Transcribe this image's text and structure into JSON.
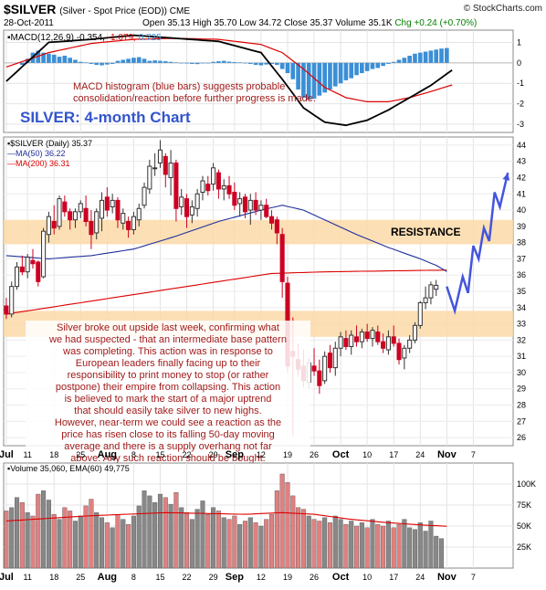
{
  "header": {
    "symbol": "$SILVER",
    "description": "(Silver - Spot Price (EOD))  CME",
    "date": "28-Oct-2011",
    "ohlc_text": "Open 35.13  High 35.70  Low 34.72  Close 35.37  Volume 35.1K",
    "change_text": "Chg +0.24 (+0.70%)",
    "brand": "© StockCharts.com"
  },
  "colors": {
    "up": "#333333",
    "down": "#cc0022",
    "macd_line": "#000000",
    "signal_line": "#dd0000",
    "histogram": "#3b8fd6",
    "ma50": "#1f2f9c",
    "ma200": "#dd0000",
    "band": "#fbd9a8",
    "annotation": "#a11a1a",
    "title": "#3355cc",
    "projection": "#4455dd",
    "vol_up": "#888888",
    "vol_down": "#e08080"
  },
  "chart_data": [
    {
      "type": "line",
      "panel": "macd",
      "legend": {
        "label": "MACD(12,26,9)",
        "macd_value": "-0.354",
        "signal_value": "-1.079",
        "hist_value": "0.725"
      },
      "y_ticks": [
        "1",
        "0",
        "-1",
        "-2",
        "-3"
      ],
      "ylim": [
        -3.4,
        1.6
      ],
      "x_index": [
        0,
        8,
        16,
        24,
        32,
        40,
        48,
        52,
        56,
        60,
        64,
        68,
        72,
        76,
        80,
        84
      ],
      "macd": [
        -0.9,
        1.0,
        1.15,
        1.35,
        1.2,
        1.05,
        0.5,
        -0.8,
        -2.2,
        -2.9,
        -3.05,
        -2.8,
        -2.3,
        -1.7,
        -1.1,
        -0.354
      ],
      "signal": [
        -0.2,
        0.5,
        0.95,
        1.15,
        1.2,
        1.15,
        0.9,
        0.5,
        -0.3,
        -1.2,
        -1.7,
        -1.9,
        -1.9,
        -1.7,
        -1.4,
        -1.079
      ],
      "histogram": [
        -0.1,
        0.2,
        0.5,
        0.6,
        0.5,
        0.45,
        0.4,
        0.3,
        0.35,
        0.25,
        0.15,
        0.05,
        0.02,
        -0.05,
        -0.1,
        -0.12,
        -0.08,
        -0.05,
        0.1,
        0.15,
        0.2,
        0.25,
        0.28,
        0.2,
        0.1,
        0.12,
        0.1,
        0.08,
        0.05,
        0.02,
        0.0,
        -0.03,
        -0.05,
        -0.06,
        -0.02,
        0.0,
        0.05,
        0.08,
        0.1,
        0.06,
        0.04,
        0.02,
        0.0,
        -0.05,
        -0.1,
        -0.12,
        -0.08,
        -0.05,
        -0.1,
        -0.3,
        -0.5,
        -0.8,
        -1.3,
        -1.7,
        -1.8,
        -1.75,
        -1.6,
        -1.45,
        -1.3,
        -1.15,
        -1.0,
        -0.85,
        -0.75,
        -0.6,
        -0.5,
        -0.4,
        -0.3,
        -0.25,
        -0.15,
        -0.05,
        0.05,
        0.15,
        0.25,
        0.35,
        0.45,
        0.5,
        0.55,
        0.6,
        0.65,
        0.7,
        0.725
      ],
      "annotation": "MACD histogram (blue bars) suggests probable consolidation/reaction before further progress is made.",
      "chart_title": "SILVER: 4-month Chart"
    },
    {
      "type": "candlestick",
      "panel": "price",
      "legend": {
        "symbol_label": "$SILVER (Daily) 35.37",
        "ma50_label": "MA(50) 36.22",
        "ma200_label": "MA(200) 36.31"
      },
      "ylim": [
        25.5,
        44.5
      ],
      "y_ticks": [
        "44",
        "43",
        "42",
        "41",
        "40",
        "39",
        "38",
        "37",
        "36",
        "35",
        "34",
        "33",
        "32",
        "31",
        "30",
        "29",
        "28",
        "27",
        "26"
      ],
      "x_ticks": [
        "Jul",
        "11",
        "18",
        "25",
        "Aug",
        "8",
        "15",
        "22",
        "29",
        "Sep",
        "12",
        "19",
        "26",
        "Oct",
        "10",
        "17",
        "24",
        "Nov",
        "7"
      ],
      "x_tick_index": [
        0,
        4,
        9,
        14,
        19,
        24,
        29,
        34,
        39,
        43,
        48,
        53,
        58,
        63,
        68,
        73,
        78,
        83,
        88
      ],
      "candles": [
        [
          34.1,
          34.6,
          33.3,
          33.6
        ],
        [
          33.6,
          35.6,
          33.4,
          35.3
        ],
        [
          35.3,
          36.8,
          35.1,
          36.5
        ],
        [
          36.5,
          37.2,
          36.0,
          36.2
        ],
        [
          36.2,
          37.3,
          35.8,
          37.1
        ],
        [
          36.9,
          37.6,
          36.4,
          36.7
        ],
        [
          36.8,
          36.9,
          35.3,
          35.6
        ],
        [
          35.9,
          38.9,
          35.8,
          38.7
        ],
        [
          38.5,
          39.9,
          38.0,
          39.6
        ],
        [
          39.3,
          40.3,
          38.5,
          38.9
        ],
        [
          39.0,
          40.9,
          38.8,
          40.7
        ],
        [
          40.5,
          40.9,
          39.6,
          39.9
        ],
        [
          39.9,
          40.1,
          38.8,
          39.4
        ],
        [
          39.4,
          40.1,
          38.9,
          39.9
        ],
        [
          39.9,
          40.6,
          39.5,
          40.4
        ],
        [
          40.1,
          40.9,
          39.0,
          39.3
        ],
        [
          39.3,
          40.0,
          37.6,
          38.5
        ],
        [
          38.6,
          40.1,
          38.2,
          39.9
        ],
        [
          39.5,
          41.1,
          38.7,
          40.6
        ],
        [
          40.8,
          41.4,
          39.6,
          40.0
        ],
        [
          40.2,
          41.0,
          39.8,
          40.6
        ],
        [
          40.6,
          40.8,
          38.9,
          39.4
        ],
        [
          39.2,
          40.1,
          38.8,
          39.8
        ],
        [
          39.3,
          39.6,
          38.3,
          38.8
        ],
        [
          38.8,
          39.9,
          38.5,
          39.6
        ],
        [
          39.4,
          40.4,
          39.0,
          40.1
        ],
        [
          40.3,
          41.7,
          40.1,
          41.4
        ],
        [
          41.3,
          43.1,
          41.0,
          42.7
        ],
        [
          42.6,
          43.5,
          42.1,
          42.6
        ],
        [
          42.9,
          44.3,
          42.6,
          43.7
        ],
        [
          43.3,
          43.5,
          41.4,
          42.2
        ],
        [
          42.0,
          43.7,
          40.9,
          42.9
        ],
        [
          42.9,
          43.1,
          39.3,
          40.1
        ],
        [
          40.2,
          41.3,
          39.7,
          40.8
        ],
        [
          40.7,
          41.0,
          38.9,
          39.6
        ],
        [
          39.7,
          40.6,
          39.2,
          40.2
        ],
        [
          40.1,
          41.3,
          39.6,
          41.0
        ],
        [
          41.1,
          42.1,
          40.6,
          41.8
        ],
        [
          41.6,
          42.1,
          40.9,
          41.2
        ],
        [
          41.6,
          42.9,
          41.2,
          42.6
        ],
        [
          42.3,
          42.5,
          40.7,
          41.3
        ],
        [
          41.3,
          41.9,
          40.6,
          41.5
        ],
        [
          41.5,
          42.1,
          40.7,
          41.0
        ],
        [
          41.1,
          41.7,
          40.0,
          40.3
        ],
        [
          40.4,
          41.1,
          39.6,
          40.7
        ],
        [
          40.8,
          41.0,
          39.5,
          39.9
        ],
        [
          40.0,
          41.0,
          39.1,
          40.6
        ],
        [
          40.6,
          41.1,
          39.7,
          40.0
        ],
        [
          40.0,
          40.6,
          39.4,
          40.3
        ],
        [
          40.3,
          40.7,
          39.5,
          39.6
        ],
        [
          39.6,
          40.0,
          38.8,
          39.2
        ],
        [
          39.4,
          39.6,
          37.9,
          38.6
        ],
        [
          38.5,
          38.9,
          34.6,
          35.6
        ],
        [
          35.5,
          35.9,
          30.0,
          30.4
        ],
        [
          31.3,
          33.4,
          26.1,
          31.0
        ],
        [
          30.8,
          31.8,
          29.8,
          30.2
        ],
        [
          30.4,
          31.4,
          29.1,
          29.5
        ],
        [
          29.4,
          30.9,
          29.0,
          30.6
        ],
        [
          30.4,
          31.5,
          29.8,
          30.1
        ],
        [
          30.1,
          30.8,
          28.7,
          29.2
        ],
        [
          29.5,
          31.3,
          29.3,
          31.0
        ],
        [
          31.2,
          31.7,
          30.0,
          30.3
        ],
        [
          30.3,
          31.9,
          29.8,
          31.5
        ],
        [
          31.5,
          32.5,
          31.0,
          32.2
        ],
        [
          32.1,
          32.6,
          31.4,
          31.6
        ],
        [
          31.6,
          32.6,
          31.1,
          32.3
        ],
        [
          32.2,
          32.9,
          31.6,
          31.9
        ],
        [
          31.9,
          32.7,
          31.5,
          32.5
        ],
        [
          32.5,
          33.0,
          31.9,
          32.1
        ],
        [
          32.1,
          32.8,
          31.6,
          32.6
        ],
        [
          32.5,
          32.9,
          31.7,
          31.9
        ],
        [
          31.9,
          32.4,
          31.2,
          31.5
        ],
        [
          31.4,
          32.6,
          31.1,
          32.2
        ],
        [
          32.2,
          32.9,
          31.6,
          31.8
        ],
        [
          31.8,
          32.1,
          30.5,
          30.8
        ],
        [
          30.9,
          31.7,
          30.2,
          31.5
        ],
        [
          31.5,
          32.3,
          31.2,
          32.0
        ],
        [
          32.0,
          33.1,
          31.8,
          32.9
        ],
        [
          32.9,
          34.4,
          32.7,
          34.3
        ],
        [
          34.3,
          35.3,
          33.9,
          34.6
        ],
        [
          34.6,
          35.6,
          34.2,
          35.4
        ],
        [
          35.13,
          35.7,
          34.72,
          35.37
        ]
      ],
      "ma50": [
        [
          0,
          37.2
        ],
        [
          8,
          37.0
        ],
        [
          16,
          37.2
        ],
        [
          24,
          37.6
        ],
        [
          32,
          38.4
        ],
        [
          40,
          39.3
        ],
        [
          48,
          40.0
        ],
        [
          52,
          40.3
        ],
        [
          56,
          40.0
        ],
        [
          60,
          39.4
        ],
        [
          66,
          38.5
        ],
        [
          72,
          37.7
        ],
        [
          78,
          37.0
        ],
        [
          81,
          36.6
        ],
        [
          83,
          36.22
        ]
      ],
      "ma200": [
        [
          0,
          33.6
        ],
        [
          10,
          34.1
        ],
        [
          20,
          34.6
        ],
        [
          30,
          35.1
        ],
        [
          40,
          35.6
        ],
        [
          50,
          36.1
        ],
        [
          60,
          36.2
        ],
        [
          70,
          36.25
        ],
        [
          83,
          36.31
        ]
      ],
      "bands": [
        {
          "from": 37.9,
          "to": 39.4,
          "label": "RESISTANCE"
        },
        {
          "from": 32.2,
          "to": 33.8,
          "label": ""
        }
      ],
      "projection": [
        [
          83,
          35.3
        ],
        [
          84.5,
          33.8
        ],
        [
          86,
          35.9
        ],
        [
          87,
          34.9
        ],
        [
          88,
          37.8
        ],
        [
          89,
          37.0
        ],
        [
          90,
          38.9
        ],
        [
          91,
          38.1
        ],
        [
          92,
          41.1
        ],
        [
          93,
          40.2
        ],
        [
          94.5,
          42.3
        ]
      ],
      "annotation": "Silver broke out upside last week, confirming what we had suspected - that an intermediate base pattern was completing. This action was in response to European leaders finally facing up to their responsibility to print money to stop (or rather postpone) their empire from collapsing. This action is believed to mark the start of a major uptrend that should easily take silver to new highs. However, near-term we could see a reaction as the price has risen close to its falling 50-day moving average and there is a supply overhang not far above. Any such reaction should be bought."
    },
    {
      "type": "bar",
      "panel": "volume",
      "legend": {
        "label": "Volume 35,060, EMA(60) 49,775"
      },
      "ylim": [
        0,
        125000
      ],
      "y_ticks": [
        "100K",
        "75K",
        "50K",
        "25K"
      ],
      "y_tick_values": [
        100000,
        75000,
        50000,
        25000
      ],
      "x_ticks": [
        "Jul",
        "11",
        "18",
        "25",
        "Aug",
        "8",
        "15",
        "22",
        "29",
        "Sep",
        "12",
        "19",
        "26",
        "Oct",
        "10",
        "17",
        "24",
        "Nov",
        "7"
      ],
      "values": [
        68000,
        72000,
        84000,
        78000,
        66000,
        62000,
        88000,
        92000,
        81000,
        64000,
        58000,
        72000,
        68000,
        56000,
        62000,
        74000,
        82000,
        66000,
        60000,
        54000,
        48000,
        64000,
        58000,
        52000,
        62000,
        74000,
        92000,
        86000,
        78000,
        88000,
        84000,
        76000,
        90000,
        72000,
        66000,
        58000,
        70000,
        80000,
        64000,
        72000,
        68000,
        60000,
        58000,
        62000,
        52000,
        56000,
        60000,
        54000,
        50000,
        58000,
        64000,
        92000,
        112000,
        102000,
        86000,
        72000,
        70000,
        62000,
        58000,
        56000,
        60000,
        54000,
        62000,
        58000,
        52000,
        56000,
        50000,
        54000,
        48000,
        58000,
        52000,
        50000,
        56000,
        48000,
        52000,
        58000,
        48000,
        46000,
        54000,
        44000,
        56000,
        38000,
        35060
      ],
      "ema60": [
        [
          0,
          56000
        ],
        [
          15,
          62000
        ],
        [
          30,
          66000
        ],
        [
          45,
          64000
        ],
        [
          52,
          66000
        ],
        [
          58,
          64000
        ],
        [
          65,
          58000
        ],
        [
          72,
          54000
        ],
        [
          79,
          51000
        ],
        [
          83,
          49775
        ]
      ]
    }
  ]
}
